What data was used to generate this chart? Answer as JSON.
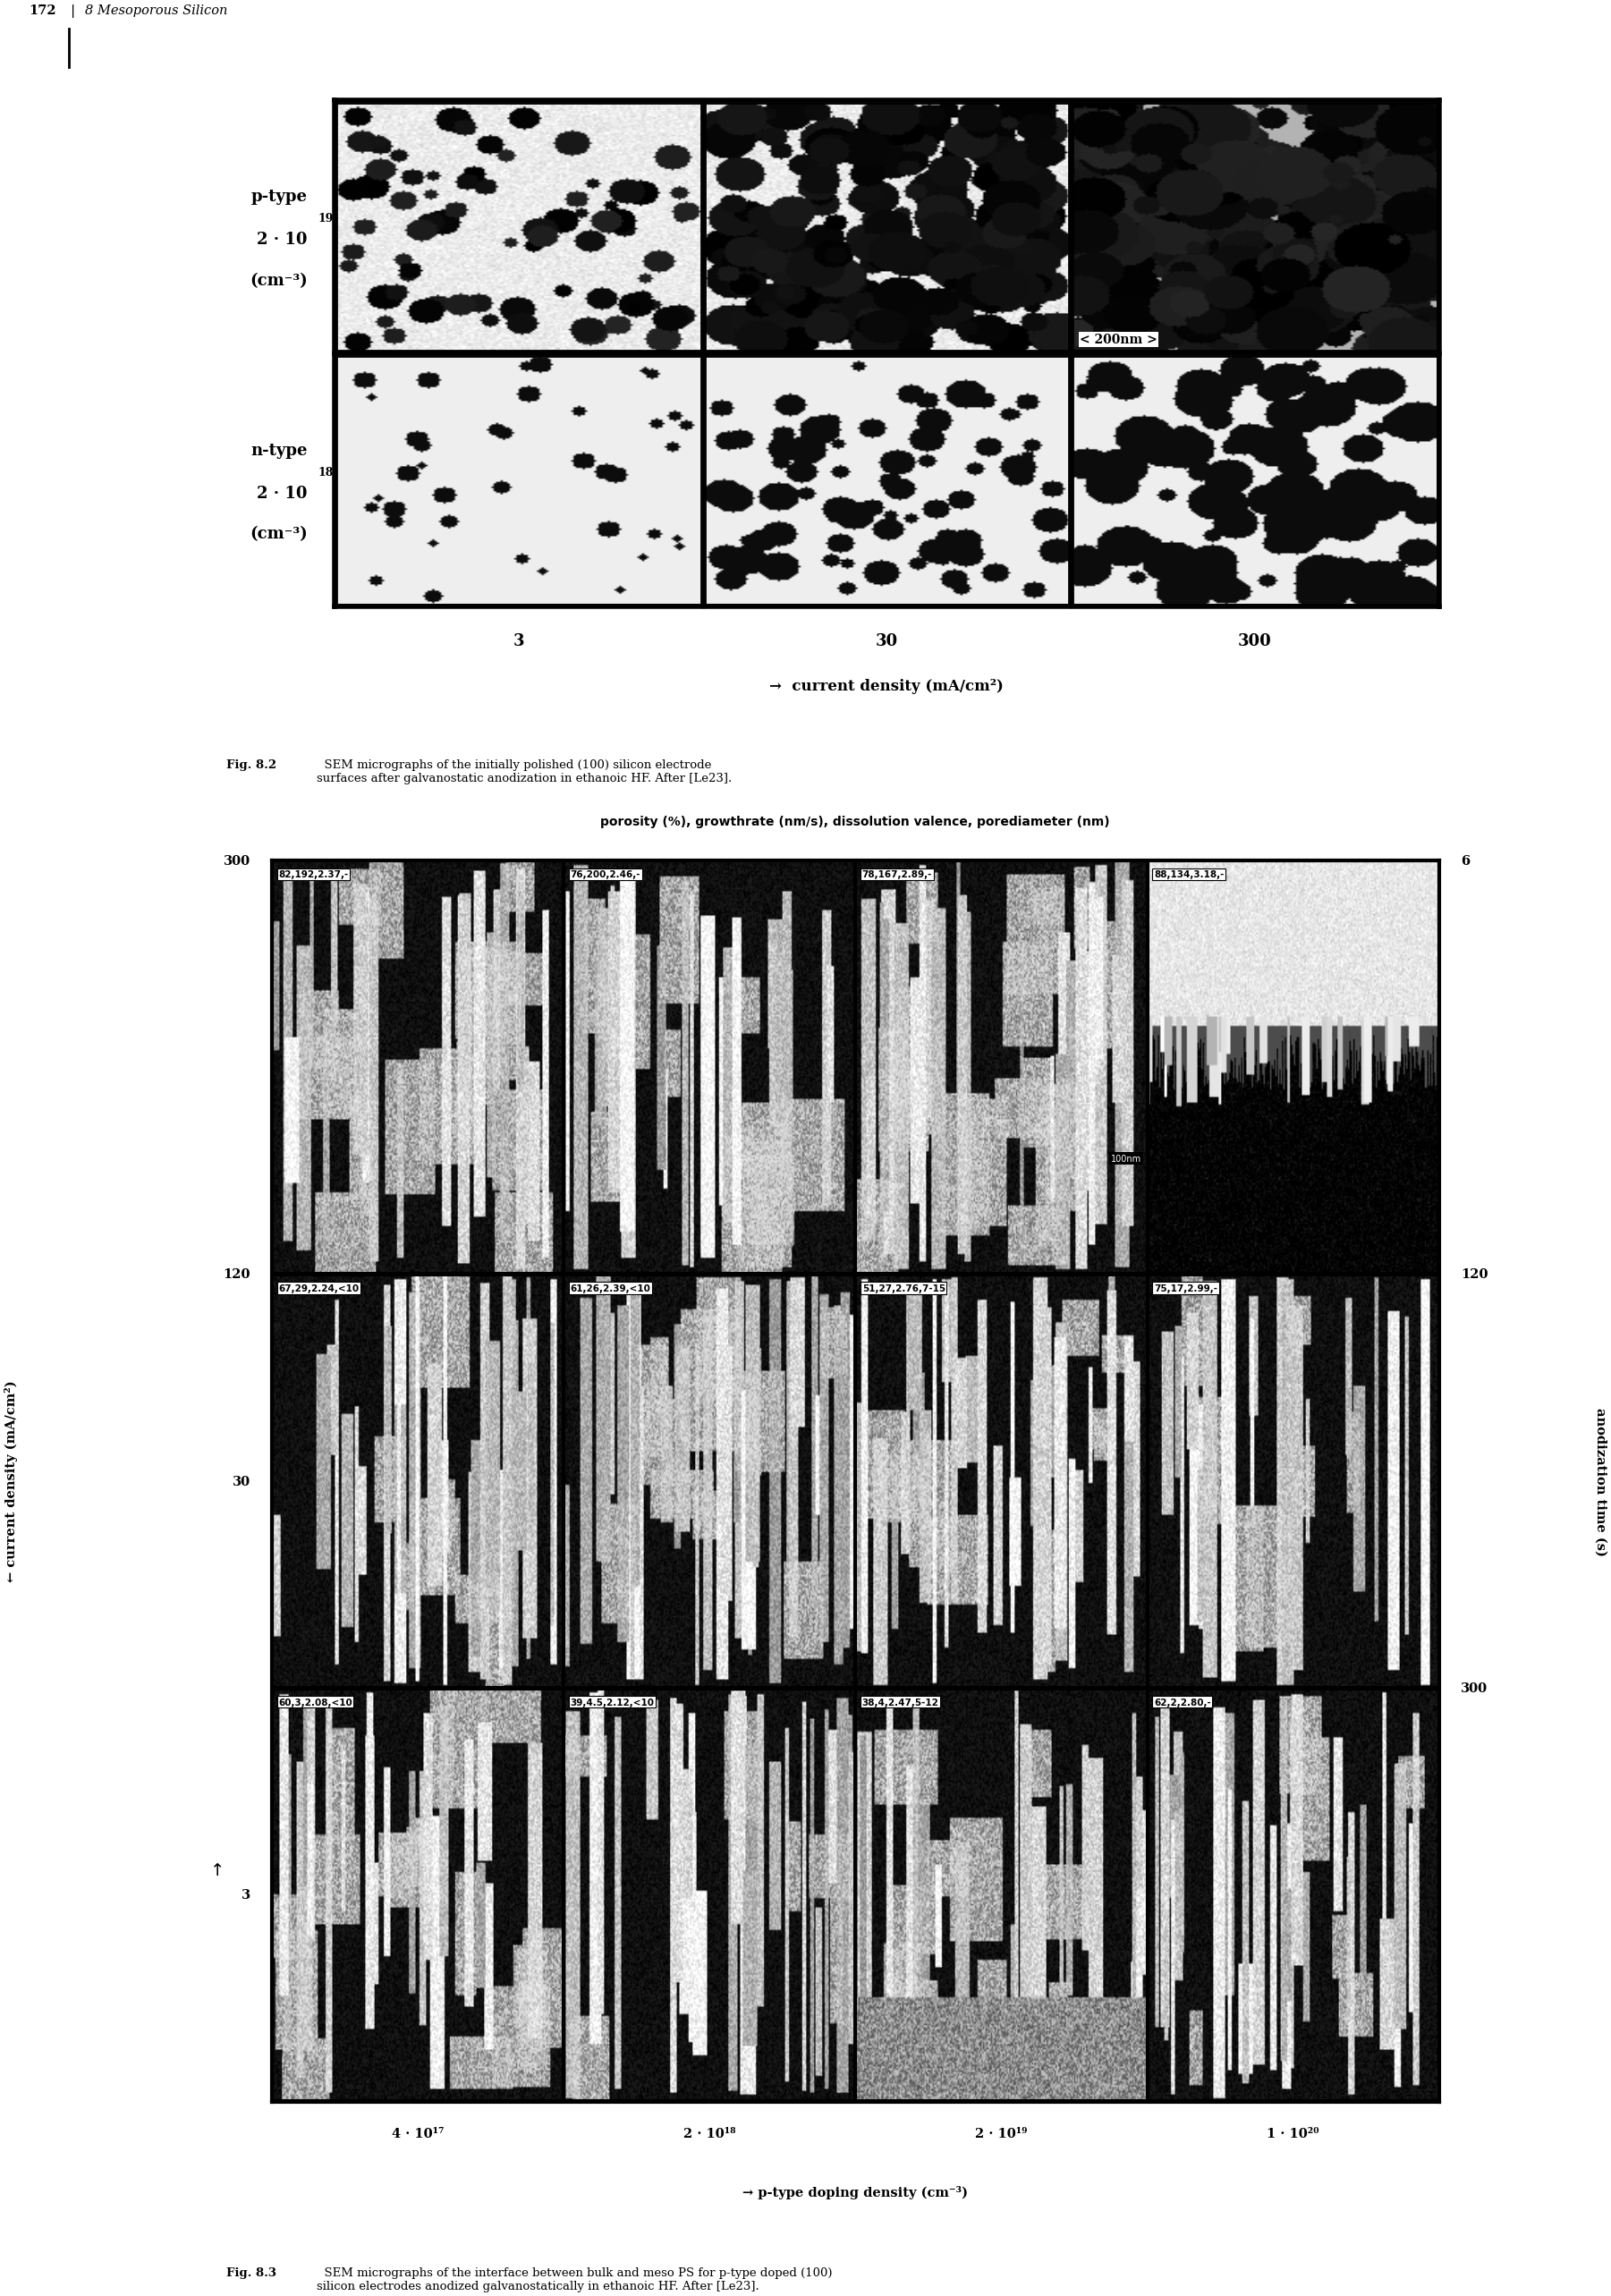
{
  "page_number": "172",
  "chapter_header": "8 Mesoporous Silicon",
  "fig2_caption_bold": "Fig. 8.2",
  "fig2_caption_normal": "  SEM micrographs of the initially polished (100) silicon electrode\nsurfaces after galvanostatic anodization in ethanoic HF. After [Le23].",
  "fig3_caption_bold": "Fig. 8.3",
  "fig3_caption_normal": "  SEM micrographs of the interface between bulk and meso PS for p-type doped (100)\nsilicon electrodes anodized galvanostatically in ethanoic HF. After [Le23].",
  "fig2_row_label_0": "p-type\n2 · 10",
  "fig2_row_label_0_sup": "19",
  "fig2_row_label_0_sub": "\n(cm⁻³)",
  "fig2_row_label_1": "n-type\n2 · 10",
  "fig2_row_label_1_sup": "18",
  "fig2_row_label_1_sub": "\n(cm⁻³)",
  "fig2_col_labels": [
    "3",
    "30",
    "300"
  ],
  "fig2_xlabel": "→ current density (mA/cm²)",
  "fig2_scale_bar": "< 200nm >",
  "fig3_title": "porosity (%), growthrate (nm/s), dissolution valence, porediameter (nm)",
  "fig3_ylabel": "← current density (mA/cm²)",
  "fig3_xlabel": "→ p-type doping density (cm⁻³)",
  "fig3_right_label": "anodization time (s)",
  "fig3_yticks_left": [
    "300",
    "120",
    "30",
    "3"
  ],
  "fig3_yticks_right": [
    "6",
    "120",
    "300"
  ],
  "fig3_xticks": [
    "4 · 10¹⁷",
    "2 · 10¹⁸",
    "2 · 10¹⁹",
    "1 · 10²⁰"
  ],
  "fig3_cell_labels": [
    [
      "82,192,2.37,-",
      "76,200,2.46,-",
      "78,167,2.89,-",
      "88,134,3.18,-"
    ],
    [
      "67,29,2.24,<10",
      "61,26,2.39,<10",
      "51,27,2.76,7-15",
      "75,17,2.99,-"
    ],
    [
      "60,3,2.08,<10",
      "39,4.5,2.12,<10",
      "38,4,2.47,5-12",
      "62,2,2.80,-"
    ]
  ],
  "fig3_100nm_label": "100nm"
}
